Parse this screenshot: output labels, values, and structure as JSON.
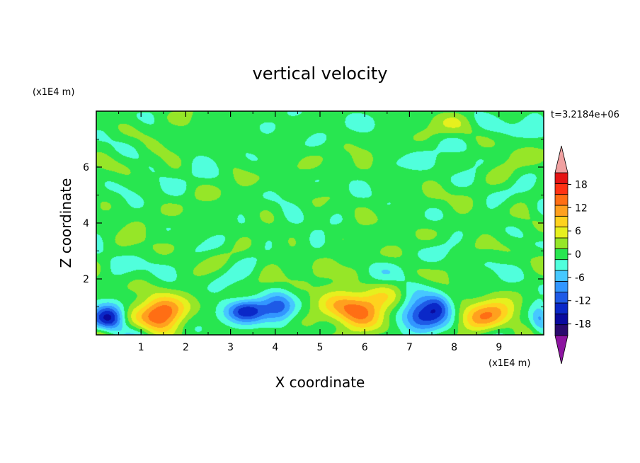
{
  "chart_data": {
    "type": "heatmap",
    "title": "vertical velocity",
    "xlabel": "X coordinate",
    "ylabel": "Z coordinate",
    "x_unit": "(x1E4 m)",
    "y_unit": "(x1E4 m)",
    "time_label": "t=3.2184e+06",
    "xlim": [
      0,
      10
    ],
    "ylim": [
      0,
      8
    ],
    "x_ticks": [
      1,
      2,
      3,
      4,
      5,
      6,
      7,
      8,
      9
    ],
    "y_ticks": [
      2,
      4,
      6
    ],
    "colorbar": {
      "levels": [
        -21,
        -18,
        -15,
        -12,
        -9,
        -6,
        -3,
        0,
        3,
        6,
        9,
        12,
        15,
        18,
        21
      ],
      "tick_labels": [
        18,
        12,
        6,
        0,
        -6,
        -12,
        -18
      ],
      "colors": [
        "#2a0a6e",
        "#0a0a9e",
        "#0a28c8",
        "#1e5ae6",
        "#3296ff",
        "#46c8ff",
        "#50ffdc",
        "#28e650",
        "#96e628",
        "#e6f01e",
        "#ffd21e",
        "#ffa01e",
        "#ff6e14",
        "#ff3214",
        "#e61414"
      ],
      "under_color": "#8c14a0",
      "over_color": "#f0a0a0",
      "extend": "both"
    },
    "features": [
      {
        "kind": "downdraft",
        "x": 0.3,
        "z": 0.55,
        "peak": -15,
        "sx": 0.35,
        "sz": 0.55
      },
      {
        "kind": "updraft",
        "x": 1.45,
        "z": 0.8,
        "peak": 14,
        "sx": 0.55,
        "sz": 0.7
      },
      {
        "kind": "downdraft",
        "x": 3.35,
        "z": 0.85,
        "peak": -15,
        "sx": 0.5,
        "sz": 0.45
      },
      {
        "kind": "downdraft",
        "x": 4.1,
        "z": 1.0,
        "peak": -8,
        "sx": 0.35,
        "sz": 0.6
      },
      {
        "kind": "updraft",
        "x": 5.75,
        "z": 0.95,
        "peak": 13,
        "sx": 0.8,
        "sz": 0.75
      },
      {
        "kind": "downdraft",
        "x": 7.25,
        "z": 0.7,
        "peak": -15,
        "sx": 0.45,
        "sz": 0.6
      },
      {
        "kind": "downdraft",
        "x": 7.65,
        "z": 1.05,
        "peak": -9,
        "sx": 0.3,
        "sz": 0.5
      },
      {
        "kind": "updraft",
        "x": 8.7,
        "z": 0.75,
        "peak": 11,
        "sx": 0.6,
        "sz": 0.6
      },
      {
        "kind": "downdraft",
        "x": 9.9,
        "z": 0.6,
        "peak": -6,
        "sx": 0.2,
        "sz": 0.5
      }
    ],
    "background_range": [
      -4,
      4
    ],
    "grid": false,
    "legend": "right"
  }
}
